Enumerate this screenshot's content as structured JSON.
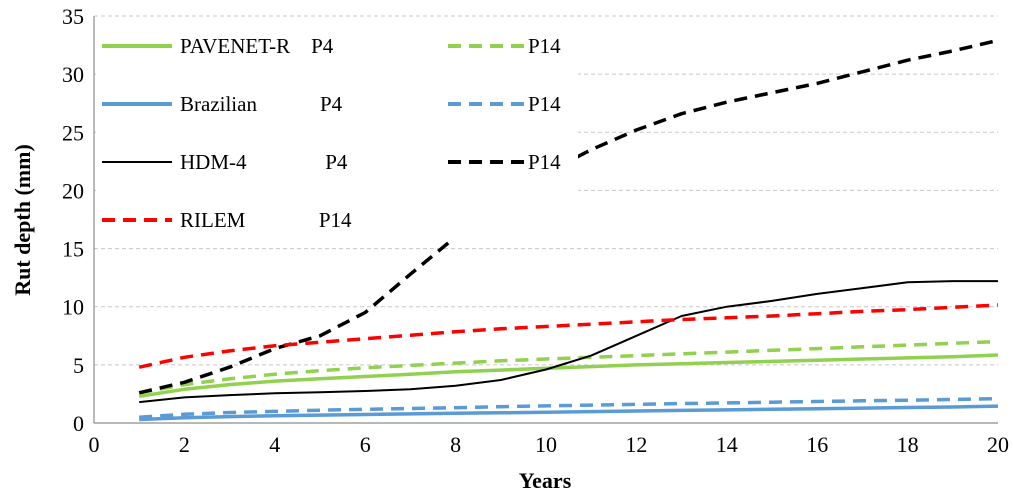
{
  "chart_data": {
    "type": "line",
    "xlabel": "Years",
    "ylabel": "Rut depth (mm)",
    "xlim": [
      0,
      20
    ],
    "ylim": [
      0,
      35
    ],
    "xticks": [
      "0",
      "2",
      "4",
      "6",
      "8",
      "10",
      "12",
      "14",
      "16",
      "18",
      "20"
    ],
    "yticks": [
      "0",
      "5",
      "10",
      "15",
      "20",
      "25",
      "30",
      "35"
    ],
    "grid": "horizontal dashed",
    "legend_position": "top-left, inside plot",
    "x": [
      1,
      2,
      3,
      4,
      5,
      6,
      7,
      8,
      9,
      10,
      11,
      12,
      13,
      14,
      15,
      16,
      17,
      18,
      19,
      20
    ],
    "series": [
      {
        "id": "pavenet_p4",
        "legend_label": "PAVENET-R    P4",
        "color": "#92d050",
        "style": "solid",
        "width": 3.5,
        "values": [
          2.3,
          2.9,
          3.3,
          3.6,
          3.8,
          4.0,
          4.2,
          4.4,
          4.55,
          4.7,
          4.85,
          5.0,
          5.1,
          5.2,
          5.3,
          5.4,
          5.5,
          5.6,
          5.7,
          5.85
        ]
      },
      {
        "id": "pavenet_p14",
        "legend_label": "P14",
        "color": "#92d050",
        "style": "dashed",
        "width": 3.5,
        "values": [
          2.6,
          3.3,
          3.8,
          4.2,
          4.5,
          4.75,
          4.95,
          5.15,
          5.35,
          5.5,
          5.65,
          5.8,
          5.95,
          6.1,
          6.25,
          6.4,
          6.55,
          6.7,
          6.85,
          7.0
        ]
      },
      {
        "id": "brazil_p4",
        "legend_label": "Brazilian            P4",
        "color": "#5b9bd5",
        "style": "solid",
        "width": 3.5,
        "values": [
          0.3,
          0.45,
          0.55,
          0.62,
          0.68,
          0.73,
          0.78,
          0.83,
          0.88,
          0.93,
          0.98,
          1.03,
          1.08,
          1.13,
          1.18,
          1.23,
          1.28,
          1.33,
          1.38,
          1.45
        ]
      },
      {
        "id": "brazil_p14",
        "legend_label": "P14",
        "color": "#5b9bd5",
        "style": "dashed",
        "width": 3.5,
        "values": [
          0.5,
          0.75,
          0.9,
          1.0,
          1.1,
          1.18,
          1.25,
          1.32,
          1.4,
          1.47,
          1.54,
          1.6,
          1.67,
          1.73,
          1.79,
          1.85,
          1.91,
          1.96,
          2.02,
          2.1
        ]
      },
      {
        "id": "hdm_p4",
        "legend_label": "HDM-4               P4",
        "color": "#000000",
        "style": "solid",
        "width": 2,
        "values": [
          1.8,
          2.2,
          2.4,
          2.55,
          2.65,
          2.75,
          2.9,
          3.2,
          3.7,
          4.6,
          5.8,
          7.5,
          9.2,
          10.0,
          10.5,
          11.1,
          11.6,
          12.1,
          12.2,
          12.2
        ]
      },
      {
        "id": "hdm_p14",
        "legend_label": "P14",
        "color": "#000000",
        "style": "dashed",
        "width": 3.5,
        "values": [
          2.6,
          3.5,
          4.8,
          6.4,
          7.5,
          9.5,
          12.8,
          16.0,
          19.0,
          21.5,
          23.5,
          25.2,
          26.6,
          27.6,
          28.4,
          29.2,
          30.2,
          31.2,
          32.0,
          32.9
        ]
      },
      {
        "id": "rilem_p14",
        "legend_label": "RILEM              P14",
        "color": "#ff0000",
        "style": "dashed",
        "width": 3.5,
        "values": [
          4.8,
          5.65,
          6.2,
          6.65,
          6.95,
          7.25,
          7.55,
          7.85,
          8.1,
          8.3,
          8.5,
          8.7,
          8.9,
          9.05,
          9.2,
          9.4,
          9.6,
          9.75,
          9.95,
          10.15
        ]
      }
    ],
    "legend_rows": [
      {
        "label": "PAVENET-R    P4",
        "series": "pavenet_p4",
        "right_label": "P14",
        "right_series": "pavenet_p14"
      },
      {
        "label": "Brazilian            P4",
        "series": "brazil_p4",
        "right_label": "P14",
        "right_series": "brazil_p14"
      },
      {
        "label": "HDM-4               P4",
        "series": "hdm_p4",
        "right_label": "P14",
        "right_series": "hdm_p14"
      },
      {
        "label": "RILEM              P14",
        "series": "rilem_p14",
        "right_label": "",
        "right_series": ""
      }
    ]
  }
}
